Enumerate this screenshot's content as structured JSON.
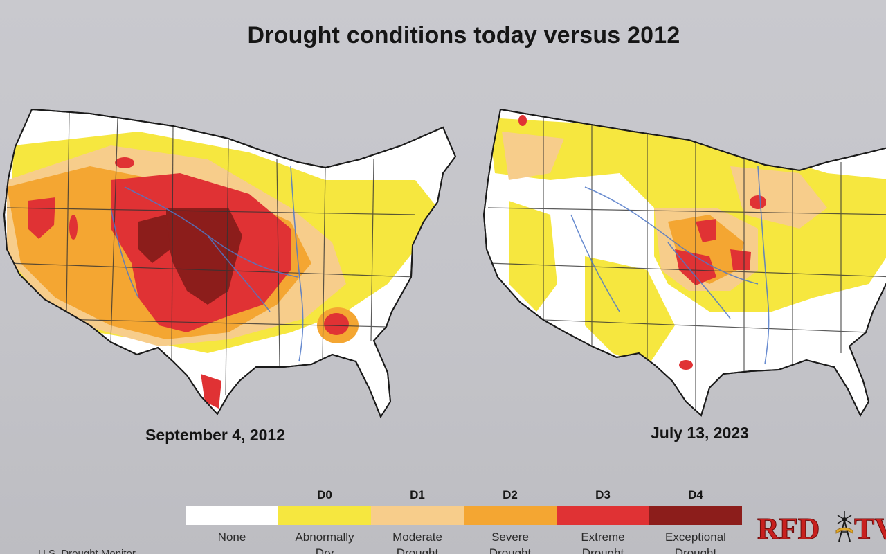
{
  "title": "Drought conditions today versus 2012",
  "maps": [
    {
      "caption": "September 4, 2012"
    },
    {
      "caption": "July 13, 2023"
    }
  ],
  "legend": {
    "categories": [
      {
        "code": "",
        "label_line1": "None",
        "label_line2": "",
        "color": "#ffffff"
      },
      {
        "code": "D0",
        "label_line1": "Abnormally",
        "label_line2": "Dry",
        "color": "#f6e73f"
      },
      {
        "code": "D1",
        "label_line1": "Moderate",
        "label_line2": "Drought",
        "color": "#f7cd8b"
      },
      {
        "code": "D2",
        "label_line1": "Severe",
        "label_line2": "Drought",
        "color": "#f4a632"
      },
      {
        "code": "D3",
        "label_line1": "Extreme",
        "label_line2": "Drought",
        "color": "#e03234"
      },
      {
        "code": "D4",
        "label_line1": "Exceptional",
        "label_line2": "Drought",
        "color": "#8c1d1b"
      }
    ]
  },
  "source": "U.S. Drought Monitor",
  "logo": {
    "letters_left": "RFD",
    "letters_right": "TV",
    "color": "#c8201e"
  }
}
